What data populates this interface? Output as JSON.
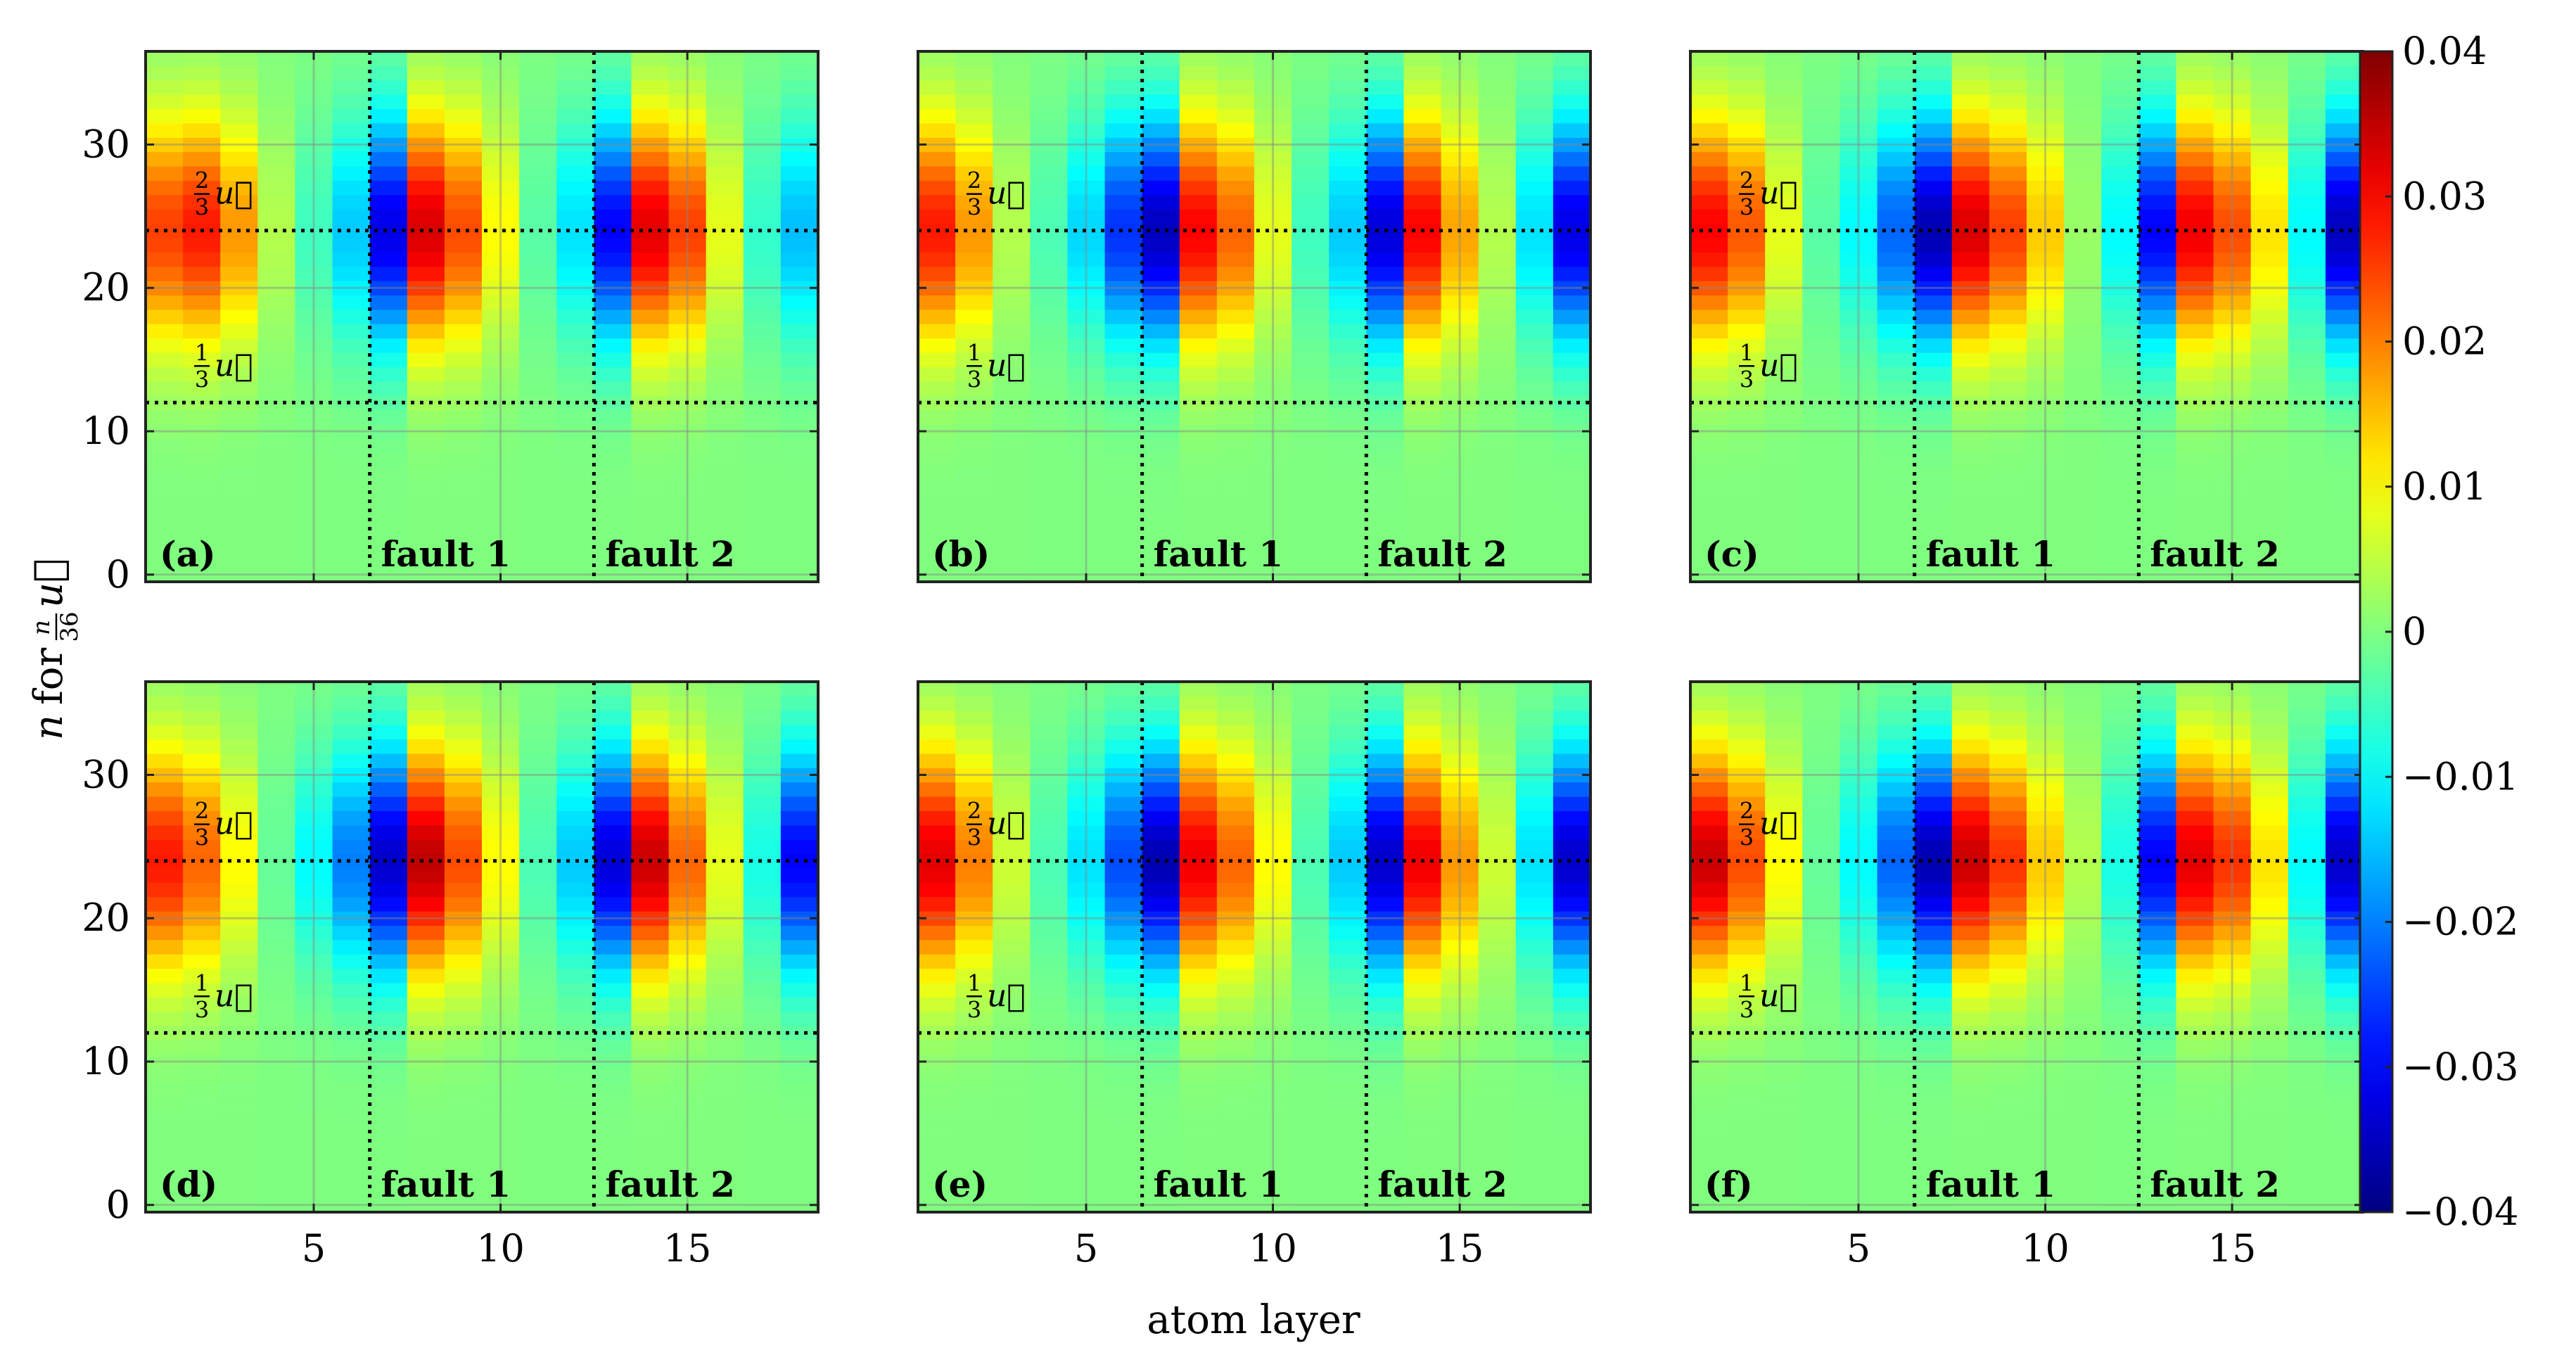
{
  "chart_data": {
    "type": "heatmap",
    "layout": "2x3 panel grid with shared colorbar",
    "xlabel": "atom layer",
    "ylabel_parts": {
      "n": "n",
      "for": "for",
      "frac_num": "n",
      "frac_den": "36",
      "vec": "u⃗"
    },
    "x_range": [
      0.5,
      18.5
    ],
    "y_range": [
      -0.5,
      36.5
    ],
    "x_ticks": [
      5,
      10,
      15
    ],
    "y_ticks": [
      0,
      10,
      20,
      30
    ],
    "grid": true,
    "colormap": "jet",
    "clim": [
      -0.04,
      0.04
    ],
    "colorbar_ticks": [
      "0.04",
      "0.03",
      "0.02",
      "0.01",
      "0",
      "−0.01",
      "−0.02",
      "−0.03",
      "−0.04"
    ],
    "colorbar_tick_values": [
      0.04,
      0.03,
      0.02,
      0.01,
      0,
      -0.01,
      -0.02,
      -0.03,
      -0.04
    ],
    "n_layers": 18,
    "n_rows": 37,
    "fault_lines_x": [
      6.5,
      12.5
    ],
    "fault_labels": [
      "fault 1",
      "fault 2"
    ],
    "hlines_y": [
      12,
      24
    ],
    "hline_labels": [
      {
        "num": "1",
        "den": "3",
        "vec": "u⃗"
      },
      {
        "num": "2",
        "den": "3",
        "vec": "u⃗"
      }
    ],
    "panels": [
      {
        "label": "(a)",
        "peak_n": 24,
        "width_n": 5.5,
        "layer_amplitudes": [
          0.025,
          0.028,
          0.018,
          0.004,
          -0.005,
          -0.014,
          -0.032,
          0.033,
          0.024,
          0.01,
          -0.003,
          -0.012,
          -0.03,
          0.032,
          0.025,
          0.008,
          -0.006,
          -0.015
        ]
      },
      {
        "label": "(b)",
        "peak_n": 24,
        "width_n": 5.5,
        "layer_amplitudes": [
          0.028,
          0.018,
          0.004,
          -0.004,
          -0.013,
          -0.026,
          -0.035,
          0.03,
          0.022,
          0.008,
          -0.005,
          -0.014,
          -0.033,
          0.03,
          0.017,
          0.004,
          -0.012,
          -0.032
        ]
      },
      {
        "label": "(c)",
        "peak_n": 24,
        "width_n": 5.5,
        "layer_amplitudes": [
          0.03,
          0.023,
          0.008,
          -0.003,
          -0.01,
          -0.022,
          -0.036,
          0.033,
          0.025,
          0.014,
          0.002,
          -0.01,
          -0.03,
          0.031,
          0.024,
          0.012,
          -0.01,
          -0.035
        ]
      },
      {
        "label": "(d)",
        "peak_n": 24,
        "width_n": 5.5,
        "layer_amplitudes": [
          0.028,
          0.022,
          0.01,
          -0.002,
          -0.01,
          -0.02,
          -0.034,
          0.035,
          0.024,
          0.01,
          -0.004,
          -0.014,
          -0.033,
          0.034,
          0.022,
          0.008,
          -0.008,
          -0.03
        ]
      },
      {
        "label": "(e)",
        "peak_n": 24,
        "width_n": 5.5,
        "layer_amplitudes": [
          0.032,
          0.02,
          0.006,
          -0.004,
          -0.012,
          -0.024,
          -0.036,
          0.031,
          0.022,
          0.01,
          -0.004,
          -0.014,
          -0.034,
          0.031,
          0.018,
          0.006,
          -0.012,
          -0.034
        ]
      },
      {
        "label": "(f)",
        "peak_n": 24,
        "width_n": 5.5,
        "layer_amplitudes": [
          0.034,
          0.024,
          0.01,
          -0.002,
          -0.01,
          -0.022,
          -0.036,
          0.034,
          0.026,
          0.014,
          0.004,
          -0.008,
          -0.03,
          0.032,
          0.026,
          0.012,
          -0.01,
          -0.034
        ]
      }
    ]
  }
}
